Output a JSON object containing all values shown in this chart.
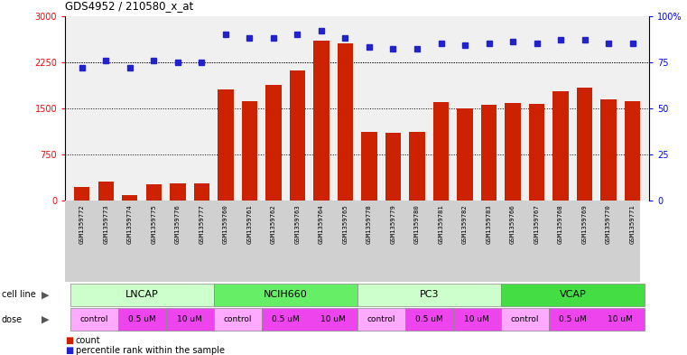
{
  "title": "GDS4952 / 210580_x_at",
  "samples": [
    "GSM1359772",
    "GSM1359773",
    "GSM1359774",
    "GSM1359775",
    "GSM1359776",
    "GSM1359777",
    "GSM1359760",
    "GSM1359761",
    "GSM1359762",
    "GSM1359763",
    "GSM1359764",
    "GSM1359765",
    "GSM1359778",
    "GSM1359779",
    "GSM1359780",
    "GSM1359781",
    "GSM1359782",
    "GSM1359783",
    "GSM1359766",
    "GSM1359767",
    "GSM1359768",
    "GSM1359769",
    "GSM1359770",
    "GSM1359771"
  ],
  "counts": [
    220,
    310,
    95,
    260,
    280,
    280,
    1800,
    1620,
    1880,
    2120,
    2600,
    2560,
    1120,
    1100,
    1120,
    1600,
    1500,
    1560,
    1590,
    1570,
    1780,
    1840,
    1640,
    1620
  ],
  "percentile": [
    72,
    76,
    72,
    76,
    75,
    75,
    90,
    88,
    88,
    90,
    92,
    88,
    83,
    82,
    82,
    85,
    84,
    85,
    86,
    85,
    87,
    87,
    85,
    85
  ],
  "cell_lines": [
    "LNCAP",
    "NCIH660",
    "PC3",
    "VCAP"
  ],
  "cell_line_spans": [
    [
      0,
      5
    ],
    [
      6,
      11
    ],
    [
      12,
      17
    ],
    [
      18,
      23
    ]
  ],
  "cell_line_colors": [
    "#ccffcc",
    "#66ee66",
    "#ccffcc",
    "#44dd44"
  ],
  "dose_groups": [
    {
      "label": "control",
      "span": [
        0,
        1
      ],
      "color": "#ffaaff"
    },
    {
      "label": "0.5 uM",
      "span": [
        2,
        3
      ],
      "color": "#ee44ee"
    },
    {
      "label": "10 uM",
      "span": [
        4,
        5
      ],
      "color": "#ee44ee"
    },
    {
      "label": "control",
      "span": [
        6,
        7
      ],
      "color": "#ffaaff"
    },
    {
      "label": "0.5 uM",
      "span": [
        8,
        9
      ],
      "color": "#ee44ee"
    },
    {
      "label": "10 uM",
      "span": [
        10,
        11
      ],
      "color": "#ee44ee"
    },
    {
      "label": "control",
      "span": [
        12,
        13
      ],
      "color": "#ffaaff"
    },
    {
      "label": "0.5 uM",
      "span": [
        14,
        15
      ],
      "color": "#ee44ee"
    },
    {
      "label": "10 uM",
      "span": [
        16,
        17
      ],
      "color": "#ee44ee"
    },
    {
      "label": "control",
      "span": [
        18,
        19
      ],
      "color": "#ffaaff"
    },
    {
      "label": "0.5 uM",
      "span": [
        20,
        21
      ],
      "color": "#ee44ee"
    },
    {
      "label": "10 uM",
      "span": [
        22,
        23
      ],
      "color": "#ee44ee"
    }
  ],
  "bar_color": "#cc2200",
  "dot_color": "#2222cc",
  "ylim_left": [
    0,
    3000
  ],
  "ylim_right": [
    0,
    100
  ],
  "yticks_left": [
    0,
    750,
    1500,
    2250,
    3000
  ],
  "yticks_right": [
    0,
    25,
    50,
    75,
    100
  ],
  "grid_vals": [
    750,
    1500,
    2250
  ],
  "plot_bg": "#f0f0f0",
  "label_bg": "#d0d0d0"
}
